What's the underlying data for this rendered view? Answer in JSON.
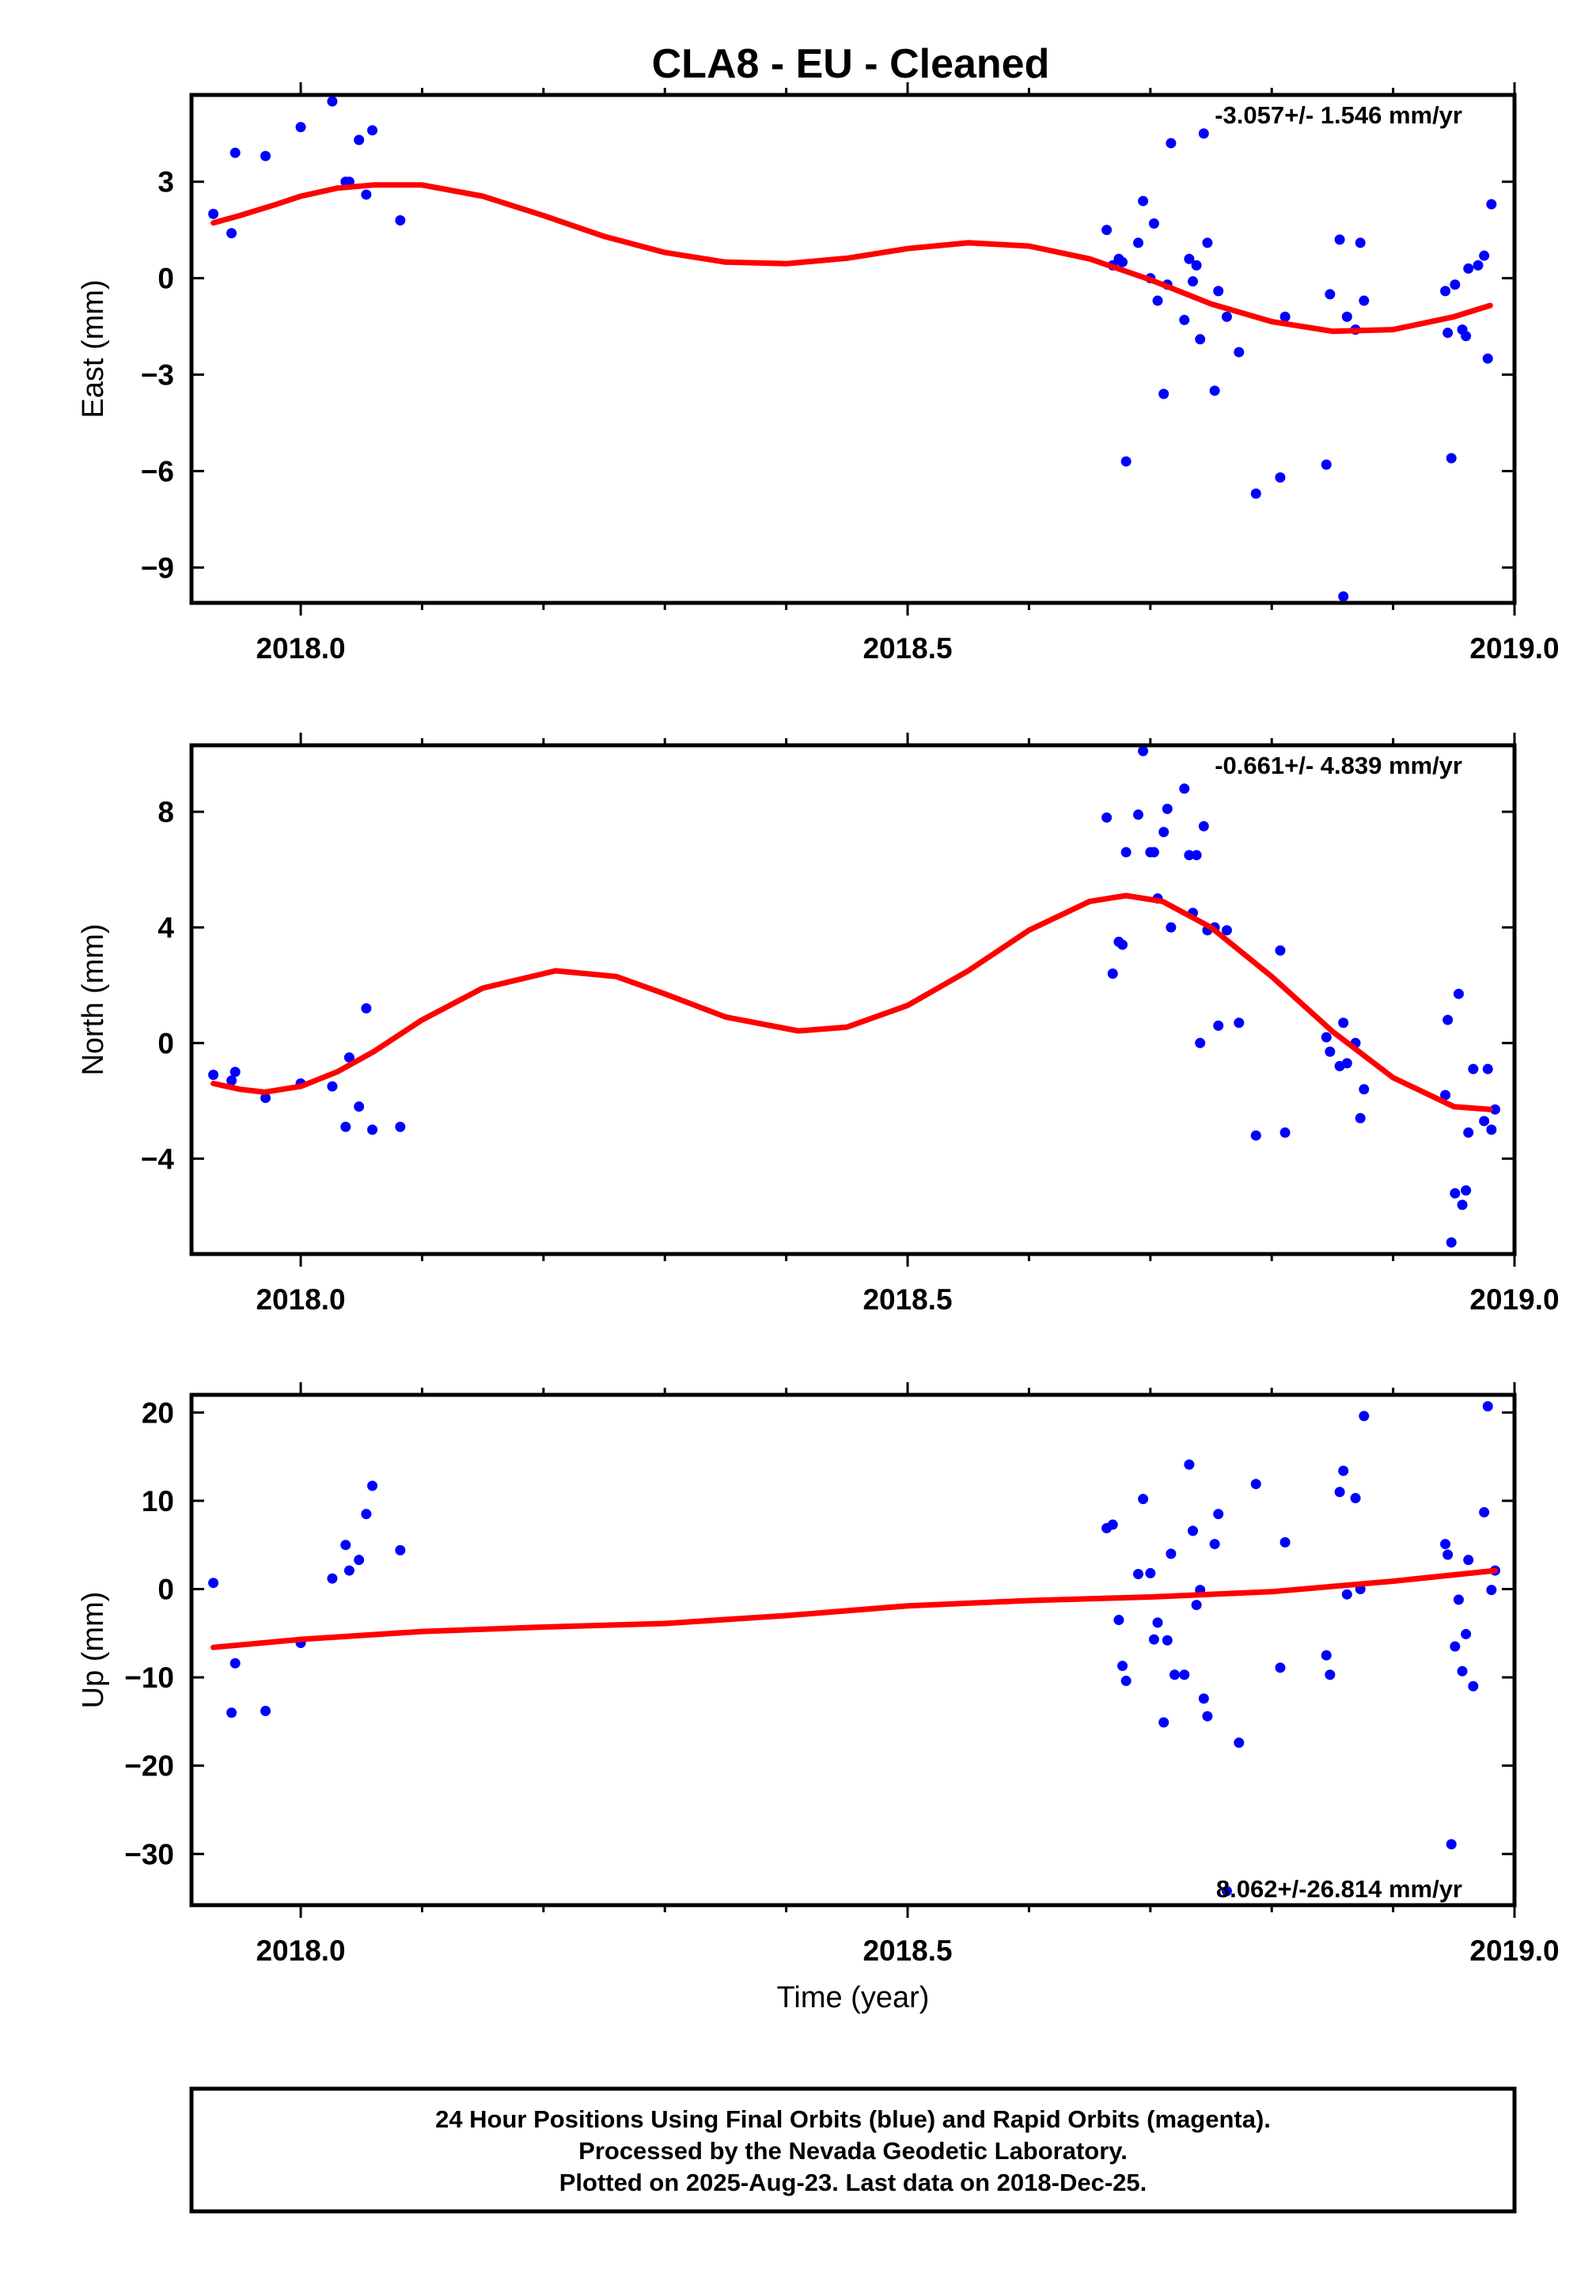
{
  "colors": {
    "points": "#0000ff",
    "fit": "#ff0000",
    "frame": "#000000"
  },
  "chart_data": {
    "type": "scatter",
    "title": "CLA8  - EU - Cleaned",
    "xlabel": "Time (year)",
    "xlim": [
      2017.91,
      2019.0
    ],
    "xticks": [
      {
        "v": 2018.0,
        "label": "2018.0"
      },
      {
        "v": 2018.5,
        "label": "2018.5"
      },
      {
        "v": 2019.0,
        "label": "2019.0"
      }
    ],
    "minor_xticks": [
      2017.9,
      2018.1,
      2018.2,
      2018.3,
      2018.4,
      2018.6,
      2018.7,
      2018.8,
      2018.9
    ],
    "grid": false,
    "panels": [
      {
        "id": "east",
        "ylabel": "East (mm)",
        "ylim": [
          -10.1,
          5.7
        ],
        "yticks": [
          {
            "v": 3,
            "label": "3"
          },
          {
            "v": 0,
            "label": "0"
          },
          {
            "v": -3,
            "label": "−3"
          },
          {
            "v": -6,
            "label": "−6"
          },
          {
            "v": -9,
            "label": "−9"
          }
        ],
        "rate_text": "-3.057+/- 1.546 mm/yr",
        "rate_pos": "top",
        "points": [
          [
            2017.928,
            2.0
          ],
          [
            2017.943,
            1.4
          ],
          [
            2017.946,
            3.9
          ],
          [
            2017.971,
            3.8
          ],
          [
            2018.0,
            4.7
          ],
          [
            2018.026,
            5.5
          ],
          [
            2018.037,
            3.0
          ],
          [
            2018.04,
            3.0
          ],
          [
            2018.048,
            4.3
          ],
          [
            2018.054,
            2.6
          ],
          [
            2018.059,
            4.6
          ],
          [
            2018.082,
            1.8
          ],
          [
            2018.664,
            1.5
          ],
          [
            2018.669,
            0.4
          ],
          [
            2018.674,
            0.6
          ],
          [
            2018.677,
            0.5
          ],
          [
            2018.68,
            -5.7
          ],
          [
            2018.69,
            1.1
          ],
          [
            2018.694,
            2.4
          ],
          [
            2018.7,
            0.0
          ],
          [
            2018.703,
            1.7
          ],
          [
            2018.706,
            -0.7
          ],
          [
            2018.711,
            -3.6
          ],
          [
            2018.714,
            -0.2
          ],
          [
            2018.717,
            4.2
          ],
          [
            2018.728,
            -1.3
          ],
          [
            2018.732,
            0.6
          ],
          [
            2018.735,
            -0.1
          ],
          [
            2018.738,
            0.4
          ],
          [
            2018.741,
            -1.9
          ],
          [
            2018.744,
            4.5
          ],
          [
            2018.747,
            1.1
          ],
          [
            2018.753,
            -3.5
          ],
          [
            2018.756,
            -0.4
          ],
          [
            2018.763,
            -1.2
          ],
          [
            2018.773,
            -2.3
          ],
          [
            2018.787,
            -6.7
          ],
          [
            2018.807,
            -6.2
          ],
          [
            2018.811,
            -1.2
          ],
          [
            2018.845,
            -5.8
          ],
          [
            2018.848,
            -0.5
          ],
          [
            2018.856,
            1.2
          ],
          [
            2018.859,
            -9.9
          ],
          [
            2018.862,
            -1.2
          ],
          [
            2018.869,
            -1.6
          ],
          [
            2018.873,
            1.1
          ],
          [
            2018.876,
            -0.7
          ],
          [
            2018.943,
            -0.4
          ],
          [
            2018.945,
            -1.7
          ],
          [
            2018.948,
            -5.6
          ],
          [
            2018.951,
            -0.2
          ],
          [
            2018.957,
            -1.6
          ],
          [
            2018.96,
            -1.8
          ],
          [
            2018.962,
            0.3
          ],
          [
            2018.97,
            0.4
          ],
          [
            2018.975,
            0.7
          ],
          [
            2018.978,
            -2.5
          ],
          [
            2018.981,
            2.3
          ]
        ],
        "fit": [
          [
            2017.928,
            1.72
          ],
          [
            2017.95,
            1.95
          ],
          [
            2017.98,
            2.3
          ],
          [
            2018.0,
            2.55
          ],
          [
            2018.03,
            2.8
          ],
          [
            2018.06,
            2.9
          ],
          [
            2018.1,
            2.9
          ],
          [
            2018.15,
            2.55
          ],
          [
            2018.2,
            1.95
          ],
          [
            2018.25,
            1.3
          ],
          [
            2018.3,
            0.8
          ],
          [
            2018.35,
            0.5
          ],
          [
            2018.4,
            0.45
          ],
          [
            2018.45,
            0.62
          ],
          [
            2018.5,
            0.92
          ],
          [
            2018.55,
            1.1
          ],
          [
            2018.6,
            1.0
          ],
          [
            2018.65,
            0.6
          ],
          [
            2018.7,
            -0.05
          ],
          [
            2018.75,
            -0.8
          ],
          [
            2018.8,
            -1.35
          ],
          [
            2018.85,
            -1.65
          ],
          [
            2018.9,
            -1.6
          ],
          [
            2018.95,
            -1.2
          ],
          [
            2018.98,
            -0.85
          ]
        ]
      },
      {
        "id": "north",
        "ylabel": "North (mm)",
        "ylim": [
          -7.3,
          10.3
        ],
        "yticks": [
          {
            "v": 8,
            "label": "8"
          },
          {
            "v": 4,
            "label": "4"
          },
          {
            "v": 0,
            "label": "0"
          },
          {
            "v": -4,
            "label": "−4"
          }
        ],
        "rate_text": "-0.661+/- 4.839 mm/yr",
        "rate_pos": "top",
        "points": [
          [
            2017.928,
            -1.1
          ],
          [
            2017.943,
            -1.3
          ],
          [
            2017.946,
            -1.0
          ],
          [
            2017.971,
            -1.9
          ],
          [
            2018.0,
            -1.4
          ],
          [
            2018.026,
            -1.5
          ],
          [
            2018.037,
            -2.9
          ],
          [
            2018.04,
            -0.5
          ],
          [
            2018.048,
            -2.2
          ],
          [
            2018.054,
            1.2
          ],
          [
            2018.059,
            -3.0
          ],
          [
            2018.082,
            -2.9
          ],
          [
            2018.664,
            7.8
          ],
          [
            2018.669,
            2.4
          ],
          [
            2018.674,
            3.5
          ],
          [
            2018.677,
            3.4
          ],
          [
            2018.68,
            6.6
          ],
          [
            2018.69,
            7.9
          ],
          [
            2018.694,
            10.1
          ],
          [
            2018.7,
            6.6
          ],
          [
            2018.703,
            6.6
          ],
          [
            2018.706,
            5.0
          ],
          [
            2018.711,
            7.3
          ],
          [
            2018.714,
            8.1
          ],
          [
            2018.717,
            4.0
          ],
          [
            2018.728,
            8.8
          ],
          [
            2018.732,
            6.5
          ],
          [
            2018.735,
            4.5
          ],
          [
            2018.738,
            6.5
          ],
          [
            2018.741,
            0.0
          ],
          [
            2018.744,
            7.5
          ],
          [
            2018.747,
            3.9
          ],
          [
            2018.753,
            4.0
          ],
          [
            2018.756,
            0.6
          ],
          [
            2018.763,
            3.9
          ],
          [
            2018.773,
            0.7
          ],
          [
            2018.787,
            -3.2
          ],
          [
            2018.807,
            3.2
          ],
          [
            2018.811,
            -3.1
          ],
          [
            2018.845,
            0.2
          ],
          [
            2018.848,
            -0.3
          ],
          [
            2018.856,
            -0.8
          ],
          [
            2018.859,
            0.7
          ],
          [
            2018.862,
            -0.7
          ],
          [
            2018.869,
            0.0
          ],
          [
            2018.873,
            -2.6
          ],
          [
            2018.876,
            -1.6
          ],
          [
            2018.943,
            -1.8
          ],
          [
            2018.945,
            0.8
          ],
          [
            2018.948,
            -6.9
          ],
          [
            2018.951,
            -5.2
          ],
          [
            2018.954,
            1.7
          ],
          [
            2018.957,
            -5.6
          ],
          [
            2018.96,
            -5.1
          ],
          [
            2018.962,
            -3.1
          ],
          [
            2018.966,
            -0.9
          ],
          [
            2018.975,
            -2.7
          ],
          [
            2018.978,
            -0.9
          ],
          [
            2018.981,
            -3.0
          ],
          [
            2018.984,
            -2.3
          ]
        ],
        "fit": [
          [
            2017.928,
            -1.4
          ],
          [
            2017.95,
            -1.6
          ],
          [
            2017.97,
            -1.7
          ],
          [
            2018.0,
            -1.5
          ],
          [
            2018.03,
            -1.0
          ],
          [
            2018.06,
            -0.3
          ],
          [
            2018.1,
            0.8
          ],
          [
            2018.15,
            1.9
          ],
          [
            2018.21,
            2.5
          ],
          [
            2018.26,
            2.3
          ],
          [
            2018.3,
            1.7
          ],
          [
            2018.35,
            0.9
          ],
          [
            2018.41,
            0.42
          ],
          [
            2018.45,
            0.55
          ],
          [
            2018.5,
            1.3
          ],
          [
            2018.55,
            2.5
          ],
          [
            2018.6,
            3.9
          ],
          [
            2018.65,
            4.9
          ],
          [
            2018.68,
            5.1
          ],
          [
            2018.71,
            4.9
          ],
          [
            2018.75,
            4.0
          ],
          [
            2018.8,
            2.3
          ],
          [
            2018.85,
            0.4
          ],
          [
            2018.9,
            -1.2
          ],
          [
            2018.95,
            -2.2
          ],
          [
            2018.98,
            -2.3
          ]
        ]
      },
      {
        "id": "up",
        "ylabel": "Up (mm)",
        "ylim": [
          -35.8,
          22.0
        ],
        "yticks": [
          {
            "v": 20,
            "label": "20"
          },
          {
            "v": 10,
            "label": "10"
          },
          {
            "v": 0,
            "label": "0"
          },
          {
            "v": -10,
            "label": "−10"
          },
          {
            "v": -20,
            "label": "−20"
          },
          {
            "v": -30,
            "label": "−30"
          }
        ],
        "rate_text": "8.062+/-26.814 mm/yr",
        "rate_pos": "bottom",
        "points": [
          [
            2017.928,
            0.7
          ],
          [
            2017.943,
            -14.0
          ],
          [
            2017.946,
            -8.4
          ],
          [
            2017.971,
            -13.8
          ],
          [
            2018.0,
            -6.1
          ],
          [
            2018.026,
            1.2
          ],
          [
            2018.037,
            5.0
          ],
          [
            2018.04,
            2.1
          ],
          [
            2018.048,
            3.3
          ],
          [
            2018.054,
            8.5
          ],
          [
            2018.059,
            11.7
          ],
          [
            2018.082,
            4.4
          ],
          [
            2018.664,
            6.9
          ],
          [
            2018.669,
            7.3
          ],
          [
            2018.674,
            -3.5
          ],
          [
            2018.677,
            -8.7
          ],
          [
            2018.68,
            -10.4
          ],
          [
            2018.69,
            1.7
          ],
          [
            2018.694,
            10.2
          ],
          [
            2018.7,
            1.8
          ],
          [
            2018.703,
            -5.7
          ],
          [
            2018.706,
            -3.8
          ],
          [
            2018.711,
            -15.1
          ],
          [
            2018.714,
            -5.8
          ],
          [
            2018.717,
            4.0
          ],
          [
            2018.72,
            -9.7
          ],
          [
            2018.728,
            -9.7
          ],
          [
            2018.732,
            14.1
          ],
          [
            2018.735,
            6.6
          ],
          [
            2018.738,
            -1.8
          ],
          [
            2018.741,
            -0.1
          ],
          [
            2018.744,
            -12.4
          ],
          [
            2018.747,
            -14.4
          ],
          [
            2018.753,
            5.1
          ],
          [
            2018.756,
            8.5
          ],
          [
            2018.763,
            -34.2
          ],
          [
            2018.773,
            -17.4
          ],
          [
            2018.787,
            11.9
          ],
          [
            2018.807,
            -8.9
          ],
          [
            2018.811,
            5.3
          ],
          [
            2018.845,
            -7.5
          ],
          [
            2018.848,
            -9.7
          ],
          [
            2018.856,
            11.0
          ],
          [
            2018.859,
            13.4
          ],
          [
            2018.862,
            -0.6
          ],
          [
            2018.869,
            10.3
          ],
          [
            2018.873,
            0.0
          ],
          [
            2018.876,
            19.6
          ],
          [
            2018.943,
            5.1
          ],
          [
            2018.945,
            3.9
          ],
          [
            2018.948,
            -28.9
          ],
          [
            2018.951,
            -6.5
          ],
          [
            2018.954,
            -1.2
          ],
          [
            2018.957,
            -9.3
          ],
          [
            2018.96,
            -5.1
          ],
          [
            2018.962,
            3.3
          ],
          [
            2018.966,
            -11.0
          ],
          [
            2018.975,
            8.7
          ],
          [
            2018.978,
            20.7
          ],
          [
            2018.981,
            -0.1
          ],
          [
            2018.984,
            2.1
          ]
        ],
        "fit": [
          [
            2017.928,
            -6.6
          ],
          [
            2018.0,
            -5.7
          ],
          [
            2018.1,
            -4.8
          ],
          [
            2018.2,
            -4.3
          ],
          [
            2018.3,
            -3.9
          ],
          [
            2018.4,
            -3.0
          ],
          [
            2018.5,
            -1.9
          ],
          [
            2018.6,
            -1.3
          ],
          [
            2018.7,
            -0.9
          ],
          [
            2018.8,
            -0.3
          ],
          [
            2018.9,
            0.9
          ],
          [
            2018.984,
            2.1
          ]
        ]
      }
    ]
  },
  "footer": {
    "line1": "24 Hour Positions Using Final Orbits (blue) and Rapid Orbits (magenta).",
    "line2": "Processed by the Nevada Geodetic Laboratory.",
    "line3": "Plotted on 2025-Aug-23. Last data on 2018-Dec-25."
  }
}
